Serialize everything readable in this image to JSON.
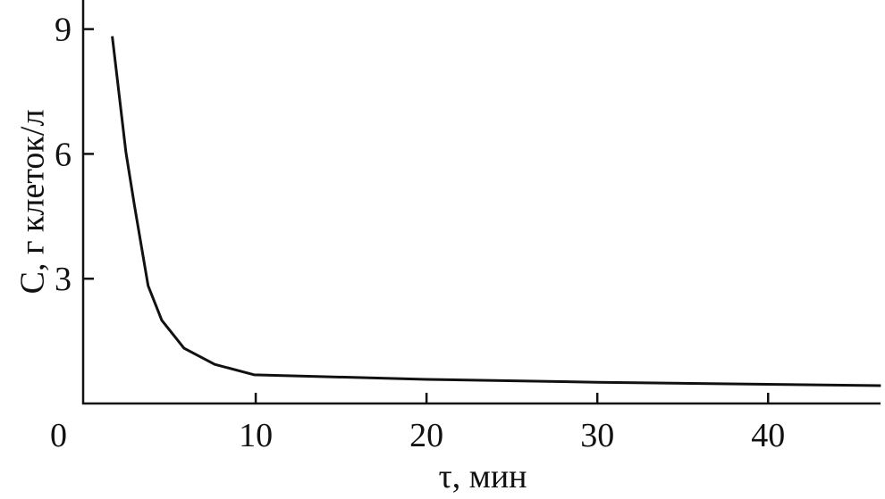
{
  "chart_data": {
    "type": "line",
    "x_label": "τ, мин",
    "y_label": "C, г клеток/л",
    "x": [
      1.6,
      2.4,
      2.9,
      3.7,
      4.5,
      5.8,
      7.6,
      9.9,
      20,
      30,
      46.6
    ],
    "series": [
      {
        "name": "C",
        "color": "#111111",
        "values": [
          8.83,
          6.04,
          4.76,
          2.83,
          2.0,
          1.33,
          0.94,
          0.69,
          0.58,
          0.51,
          0.43
        ]
      }
    ],
    "xlim": [
      0,
      47
    ],
    "xticks": [
      0,
      10,
      20,
      30,
      40
    ],
    "ylim": [
      0,
      9.7
    ],
    "yticks": [
      3,
      6,
      9
    ]
  }
}
